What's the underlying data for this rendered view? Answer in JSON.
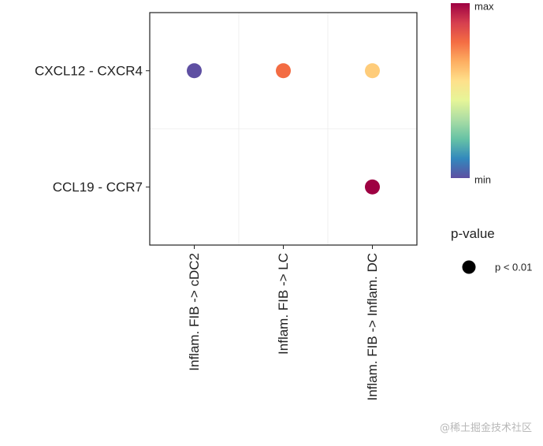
{
  "chart_data": {
    "type": "scatter",
    "title": "",
    "xlabel": "",
    "ylabel": "",
    "x_categories": [
      "Inflam. FIB -> cDC2",
      "Inflam. FIB -> LC",
      "Inflam. FIB -> Inflam. DC"
    ],
    "y_categories": [
      "CXCL12 - CXCR4",
      "CCL19 - CCR7"
    ],
    "grid": true,
    "points": [
      {
        "x": "Inflam. FIB -> cDC2",
        "y": "CXCL12 - CXCR4",
        "value": 0.0,
        "pvalue": "p < 0.01"
      },
      {
        "x": "Inflam. FIB -> LC",
        "y": "CXCL12 - CXCR4",
        "value": 0.78,
        "pvalue": "p < 0.01"
      },
      {
        "x": "Inflam. FIB -> Inflam. DC",
        "y": "CXCL12 - CXCR4",
        "value": 0.6,
        "pvalue": "p < 0.01"
      },
      {
        "x": "Inflam. FIB -> Inflam. DC",
        "y": "CCL19 - CCR7",
        "value": 1.0,
        "pvalue": "p < 0.01"
      }
    ],
    "colorbar": {
      "label_max": "max",
      "label_min": "min",
      "colors": [
        "#5e4fa2",
        "#3288bd",
        "#66c2a5",
        "#abdda4",
        "#e6f598",
        "#fee08b",
        "#fdae61",
        "#f46d43",
        "#d53e4f",
        "#9e0142"
      ]
    },
    "legend": {
      "title": "p-value",
      "entries": [
        {
          "label": "p < 0.01",
          "color": "#000000"
        }
      ],
      "placement": "right"
    }
  },
  "watermark": "@稀土掘金技术社区"
}
